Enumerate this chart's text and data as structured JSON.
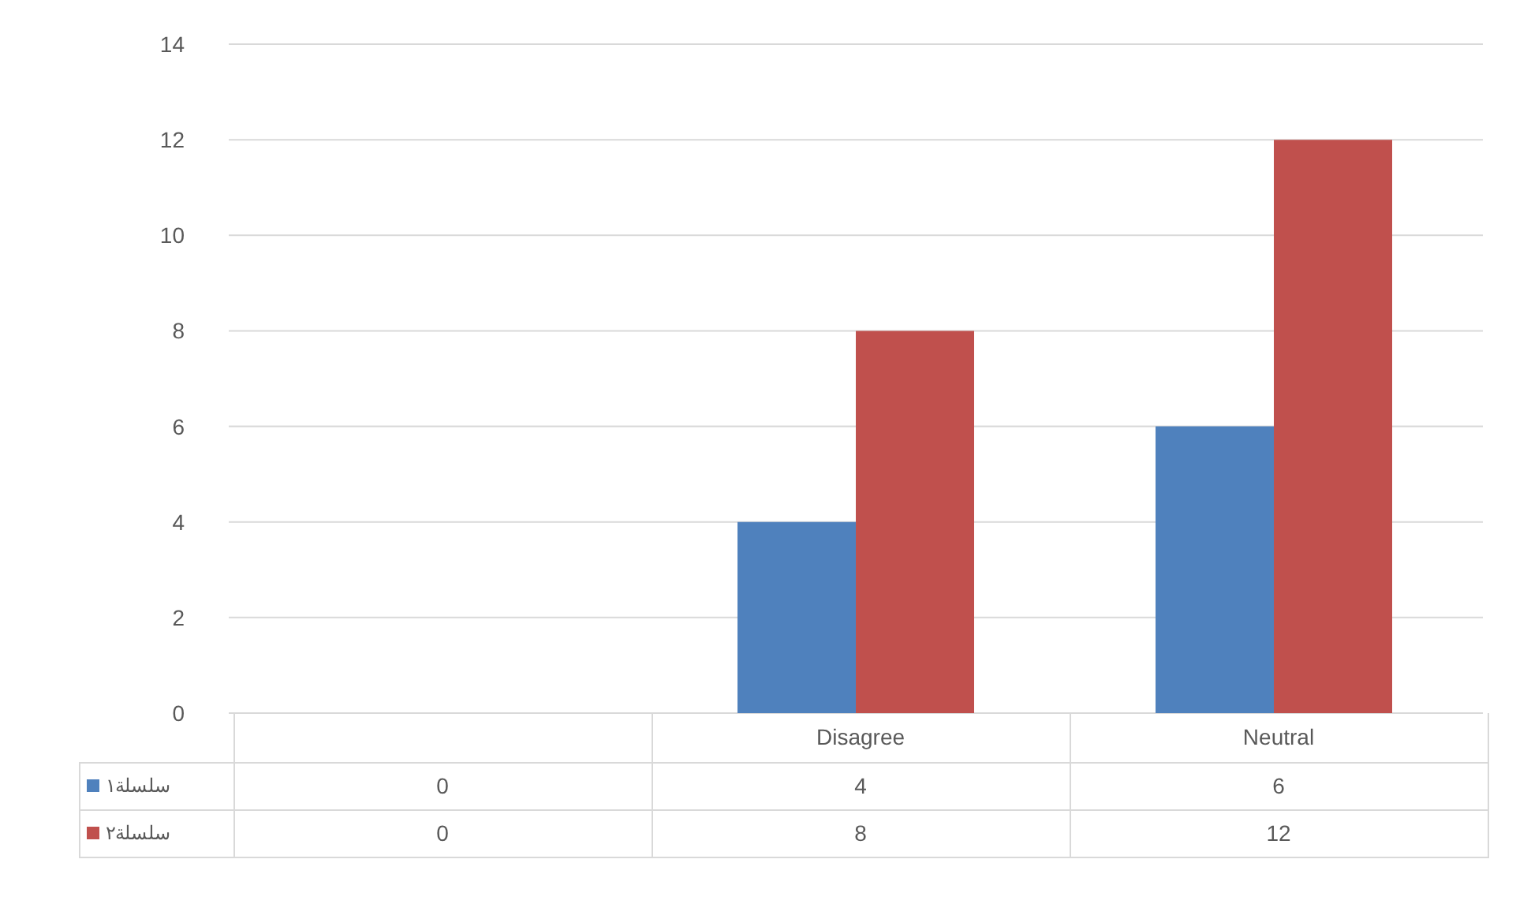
{
  "chart_data": {
    "type": "bar",
    "categories": [
      null,
      "Disagree",
      "Neutral"
    ],
    "series": [
      {
        "name": "سلسلة١",
        "color": "#4f81bd",
        "values": [
          0,
          4,
          6
        ]
      },
      {
        "name": "سلسلة٢",
        "color": "#c0504d",
        "values": [
          0,
          8,
          12
        ]
      }
    ],
    "ylim": [
      0,
      14
    ],
    "yticks": [
      0,
      2,
      4,
      6,
      8,
      10,
      12,
      14
    ],
    "grid": "y",
    "data_labels": true,
    "legend": "left"
  }
}
